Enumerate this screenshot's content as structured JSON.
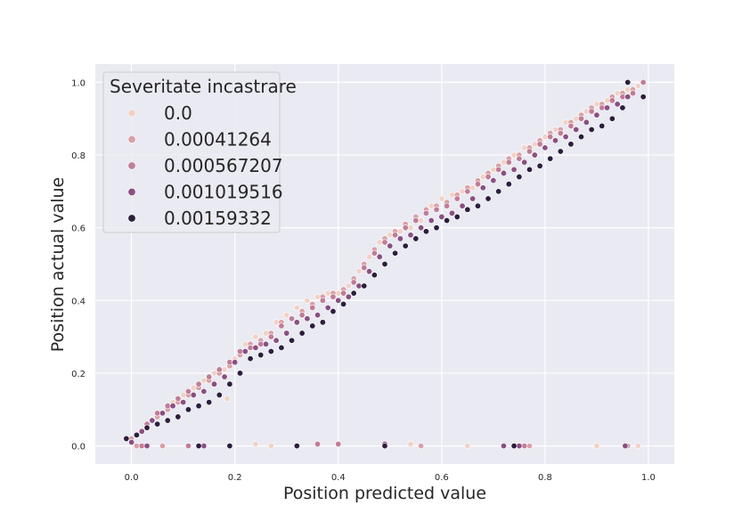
{
  "chart_data": {
    "type": "scatter",
    "title": "",
    "xlabel": "Position predicted value",
    "ylabel": "Position actual value",
    "xlim": [
      -0.07,
      1.05
    ],
    "ylim": [
      -0.05,
      1.05
    ],
    "xticks": [
      "0.0",
      "0.2",
      "0.4",
      "0.6",
      "0.8",
      "1.0"
    ],
    "yticks": [
      "0.0",
      "0.2",
      "0.4",
      "0.6",
      "0.8",
      "1.0"
    ],
    "grid": true,
    "legend": {
      "title": "Severitate incastrare",
      "placement": "top-left"
    },
    "series": [
      {
        "name": "0.0",
        "color": "#f1d2c6",
        "points": [
          [
            0.02,
            0.04
          ],
          [
            0.04,
            0.07
          ],
          [
            0.06,
            0.09
          ],
          [
            0.08,
            0.12
          ],
          [
            0.1,
            0.14
          ],
          [
            0.12,
            0.16
          ],
          [
            0.14,
            0.18
          ],
          [
            0.16,
            0.2
          ],
          [
            0.18,
            0.21
          ],
          [
            0.2,
            0.24
          ],
          [
            0.22,
            0.28
          ],
          [
            0.24,
            0.3
          ],
          [
            0.26,
            0.31
          ],
          [
            0.28,
            0.34
          ],
          [
            0.3,
            0.36
          ],
          [
            0.32,
            0.38
          ],
          [
            0.34,
            0.4
          ],
          [
            0.36,
            0.41
          ],
          [
            0.38,
            0.42
          ],
          [
            0.4,
            0.42
          ],
          [
            0.42,
            0.44
          ],
          [
            0.44,
            0.48
          ],
          [
            0.46,
            0.52
          ],
          [
            0.48,
            0.56
          ],
          [
            0.5,
            0.58
          ],
          [
            0.52,
            0.59
          ],
          [
            0.54,
            0.6
          ],
          [
            0.56,
            0.62
          ],
          [
            0.58,
            0.66
          ],
          [
            0.6,
            0.68
          ],
          [
            0.62,
            0.69
          ],
          [
            0.64,
            0.7
          ],
          [
            0.66,
            0.71
          ],
          [
            0.68,
            0.74
          ],
          [
            0.7,
            0.76
          ],
          [
            0.72,
            0.78
          ],
          [
            0.74,
            0.8
          ],
          [
            0.76,
            0.82
          ],
          [
            0.78,
            0.83
          ],
          [
            0.8,
            0.85
          ],
          [
            0.82,
            0.87
          ],
          [
            0.84,
            0.89
          ],
          [
            0.86,
            0.9
          ],
          [
            0.88,
            0.92
          ],
          [
            0.9,
            0.94
          ],
          [
            0.92,
            0.95
          ],
          [
            0.94,
            0.97
          ],
          [
            0.96,
            0.98
          ],
          [
            0.98,
            0.99
          ],
          [
            0.97,
            0.97
          ],
          [
            0.185,
            0.13
          ],
          [
            0.24,
            0.005
          ],
          [
            0.27,
            0.0
          ],
          [
            0.54,
            0.005
          ],
          [
            0.65,
            0.0
          ],
          [
            0.9,
            0.0
          ],
          [
            0.98,
            0.0
          ]
        ]
      },
      {
        "name": "0.00041264",
        "color": "#d8a0a7",
        "points": [
          [
            0.0,
            0.02
          ],
          [
            0.03,
            0.05
          ],
          [
            0.05,
            0.08
          ],
          [
            0.07,
            0.1
          ],
          [
            0.09,
            0.12
          ],
          [
            0.11,
            0.14
          ],
          [
            0.13,
            0.16
          ],
          [
            0.15,
            0.18
          ],
          [
            0.17,
            0.2
          ],
          [
            0.19,
            0.22
          ],
          [
            0.21,
            0.25
          ],
          [
            0.23,
            0.28
          ],
          [
            0.25,
            0.29
          ],
          [
            0.27,
            0.31
          ],
          [
            0.29,
            0.34
          ],
          [
            0.31,
            0.35
          ],
          [
            0.33,
            0.37
          ],
          [
            0.35,
            0.39
          ],
          [
            0.37,
            0.41
          ],
          [
            0.39,
            0.42
          ],
          [
            0.41,
            0.43
          ],
          [
            0.43,
            0.46
          ],
          [
            0.45,
            0.5
          ],
          [
            0.47,
            0.54
          ],
          [
            0.49,
            0.57
          ],
          [
            0.51,
            0.59
          ],
          [
            0.53,
            0.61
          ],
          [
            0.55,
            0.63
          ],
          [
            0.57,
            0.65
          ],
          [
            0.59,
            0.66
          ],
          [
            0.61,
            0.67
          ],
          [
            0.63,
            0.69
          ],
          [
            0.65,
            0.71
          ],
          [
            0.67,
            0.73
          ],
          [
            0.69,
            0.75
          ],
          [
            0.71,
            0.77
          ],
          [
            0.73,
            0.79
          ],
          [
            0.75,
            0.8
          ],
          [
            0.77,
            0.82
          ],
          [
            0.79,
            0.84
          ],
          [
            0.81,
            0.86
          ],
          [
            0.83,
            0.87
          ],
          [
            0.85,
            0.89
          ],
          [
            0.87,
            0.91
          ],
          [
            0.89,
            0.93
          ],
          [
            0.91,
            0.94
          ],
          [
            0.93,
            0.96
          ],
          [
            0.95,
            0.97
          ],
          [
            0.97,
            0.98
          ],
          [
            0.01,
            0.0
          ],
          [
            0.06,
            0.0
          ],
          [
            0.56,
            0.0
          ],
          [
            0.77,
            0.0
          ],
          [
            0.96,
            0.0
          ]
        ]
      },
      {
        "name": "0.000567207",
        "color": "#c07d96",
        "points": [
          [
            0.01,
            0.03
          ],
          [
            0.03,
            0.06
          ],
          [
            0.05,
            0.09
          ],
          [
            0.07,
            0.11
          ],
          [
            0.09,
            0.13
          ],
          [
            0.11,
            0.15
          ],
          [
            0.13,
            0.17
          ],
          [
            0.15,
            0.19
          ],
          [
            0.17,
            0.21
          ],
          [
            0.19,
            0.23
          ],
          [
            0.21,
            0.26
          ],
          [
            0.23,
            0.27
          ],
          [
            0.25,
            0.28
          ],
          [
            0.27,
            0.3
          ],
          [
            0.29,
            0.33
          ],
          [
            0.31,
            0.35
          ],
          [
            0.33,
            0.36
          ],
          [
            0.35,
            0.38
          ],
          [
            0.37,
            0.4
          ],
          [
            0.39,
            0.41
          ],
          [
            0.41,
            0.42
          ],
          [
            0.43,
            0.45
          ],
          [
            0.45,
            0.49
          ],
          [
            0.47,
            0.53
          ],
          [
            0.49,
            0.56
          ],
          [
            0.51,
            0.58
          ],
          [
            0.53,
            0.6
          ],
          [
            0.55,
            0.62
          ],
          [
            0.57,
            0.64
          ],
          [
            0.59,
            0.65
          ],
          [
            0.61,
            0.66
          ],
          [
            0.63,
            0.68
          ],
          [
            0.65,
            0.7
          ],
          [
            0.67,
            0.72
          ],
          [
            0.69,
            0.74
          ],
          [
            0.71,
            0.76
          ],
          [
            0.73,
            0.78
          ],
          [
            0.75,
            0.79
          ],
          [
            0.77,
            0.81
          ],
          [
            0.79,
            0.83
          ],
          [
            0.81,
            0.85
          ],
          [
            0.83,
            0.86
          ],
          [
            0.85,
            0.88
          ],
          [
            0.87,
            0.9
          ],
          [
            0.89,
            0.92
          ],
          [
            0.91,
            0.93
          ],
          [
            0.93,
            0.95
          ],
          [
            0.95,
            0.96
          ],
          [
            0.97,
            0.97
          ],
          [
            0.99,
            1.0
          ],
          [
            0.02,
            0.0
          ],
          [
            0.11,
            0.0
          ],
          [
            0.36,
            0.005
          ],
          [
            0.4,
            0.005
          ],
          [
            0.76,
            0.0
          ]
        ]
      },
      {
        "name": "0.001019516",
        "color": "#8a4f82",
        "points": [
          [
            0.0,
            0.01
          ],
          [
            0.02,
            0.04
          ],
          [
            0.04,
            0.07
          ],
          [
            0.06,
            0.09
          ],
          [
            0.08,
            0.11
          ],
          [
            0.1,
            0.12
          ],
          [
            0.12,
            0.14
          ],
          [
            0.14,
            0.15
          ],
          [
            0.16,
            0.17
          ],
          [
            0.18,
            0.19
          ],
          [
            0.2,
            0.23
          ],
          [
            0.22,
            0.26
          ],
          [
            0.24,
            0.27
          ],
          [
            0.26,
            0.28
          ],
          [
            0.28,
            0.29
          ],
          [
            0.3,
            0.31
          ],
          [
            0.32,
            0.34
          ],
          [
            0.34,
            0.35
          ],
          [
            0.36,
            0.36
          ],
          [
            0.38,
            0.38
          ],
          [
            0.4,
            0.4
          ],
          [
            0.42,
            0.41
          ],
          [
            0.44,
            0.44
          ],
          [
            0.46,
            0.48
          ],
          [
            0.48,
            0.52
          ],
          [
            0.5,
            0.55
          ],
          [
            0.52,
            0.57
          ],
          [
            0.54,
            0.58
          ],
          [
            0.56,
            0.6
          ],
          [
            0.58,
            0.62
          ],
          [
            0.6,
            0.63
          ],
          [
            0.62,
            0.64
          ],
          [
            0.64,
            0.66
          ],
          [
            0.66,
            0.68
          ],
          [
            0.68,
            0.71
          ],
          [
            0.7,
            0.73
          ],
          [
            0.72,
            0.75
          ],
          [
            0.74,
            0.76
          ],
          [
            0.76,
            0.78
          ],
          [
            0.78,
            0.8
          ],
          [
            0.8,
            0.82
          ],
          [
            0.82,
            0.84
          ],
          [
            0.84,
            0.85
          ],
          [
            0.86,
            0.87
          ],
          [
            0.88,
            0.89
          ],
          [
            0.9,
            0.91
          ],
          [
            0.92,
            0.93
          ],
          [
            0.94,
            0.94
          ],
          [
            0.96,
            0.96
          ],
          [
            0.03,
            0.0
          ],
          [
            0.14,
            0.0
          ],
          [
            0.49,
            0.005
          ],
          [
            0.72,
            0.0
          ],
          [
            0.75,
            0.0
          ],
          [
            0.955,
            0.0
          ]
        ]
      },
      {
        "name": "0.00159332",
        "color": "#2c1e3d",
        "points": [
          [
            -0.01,
            0.02
          ],
          [
            0.01,
            0.03
          ],
          [
            0.03,
            0.05
          ],
          [
            0.05,
            0.06
          ],
          [
            0.07,
            0.07
          ],
          [
            0.09,
            0.08
          ],
          [
            0.11,
            0.1
          ],
          [
            0.13,
            0.11
          ],
          [
            0.15,
            0.12
          ],
          [
            0.17,
            0.14
          ],
          [
            0.19,
            0.17
          ],
          [
            0.21,
            0.2
          ],
          [
            0.23,
            0.24
          ],
          [
            0.25,
            0.25
          ],
          [
            0.27,
            0.26
          ],
          [
            0.29,
            0.27
          ],
          [
            0.31,
            0.29
          ],
          [
            0.33,
            0.31
          ],
          [
            0.35,
            0.33
          ],
          [
            0.37,
            0.34
          ],
          [
            0.39,
            0.37
          ],
          [
            0.41,
            0.39
          ],
          [
            0.43,
            0.42
          ],
          [
            0.45,
            0.44
          ],
          [
            0.47,
            0.47
          ],
          [
            0.49,
            0.5
          ],
          [
            0.51,
            0.53
          ],
          [
            0.53,
            0.55
          ],
          [
            0.55,
            0.57
          ],
          [
            0.57,
            0.59
          ],
          [
            0.59,
            0.6
          ],
          [
            0.61,
            0.62
          ],
          [
            0.63,
            0.63
          ],
          [
            0.65,
            0.65
          ],
          [
            0.67,
            0.66
          ],
          [
            0.69,
            0.68
          ],
          [
            0.71,
            0.7
          ],
          [
            0.73,
            0.72
          ],
          [
            0.75,
            0.74
          ],
          [
            0.77,
            0.76
          ],
          [
            0.79,
            0.77
          ],
          [
            0.81,
            0.79
          ],
          [
            0.83,
            0.81
          ],
          [
            0.85,
            0.83
          ],
          [
            0.87,
            0.85
          ],
          [
            0.89,
            0.87
          ],
          [
            0.91,
            0.88
          ],
          [
            0.93,
            0.9
          ],
          [
            0.95,
            0.93
          ],
          [
            0.96,
            1.0
          ],
          [
            0.99,
            0.96
          ],
          [
            0.13,
            0.0
          ],
          [
            0.19,
            0.0
          ],
          [
            0.32,
            0.0
          ],
          [
            0.49,
            0.0
          ],
          [
            0.74,
            0.0
          ]
        ]
      }
    ]
  }
}
